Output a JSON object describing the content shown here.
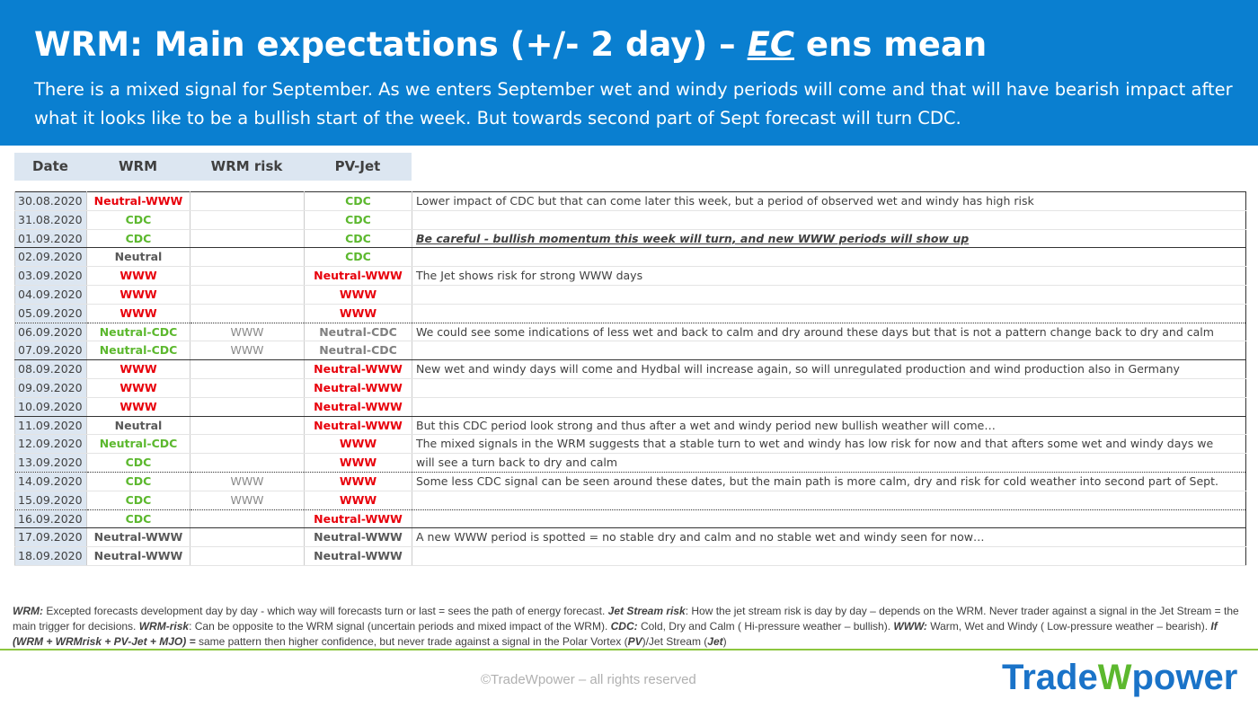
{
  "header": {
    "title": [
      "WRM: Main expectations (+/- 2 day) – ",
      "EC",
      " ens mean"
    ],
    "subtitle": "There is a mixed signal for September. As we enters September wet and windy periods will come and that will have bearish impact after what it looks like to be a bullish start of the week. But towards second part of Sept forecast will turn CDC."
  },
  "table": {
    "headers": [
      "Date",
      "WRM",
      "WRM risk",
      "PV-Jet"
    ],
    "rows": [
      {
        "date": "30.08.2020",
        "wrm": "Neutral-WWW",
        "wrm_color": "#e8000b",
        "risk": null,
        "pv": "CDC",
        "pv_color": "#5cb82e",
        "note": "Lower impact of CDC but that can come later this week, but a period of observed wet and windy has high risk"
      },
      {
        "date": "31.08.2020",
        "wrm": "CDC",
        "wrm_color": "#5cb82e",
        "risk": null,
        "pv": "CDC",
        "pv_color": "#5cb82e",
        "note": null
      },
      {
        "date": "01.09.2020",
        "wrm": "CDC",
        "wrm_color": "#5cb82e",
        "risk": null,
        "pv": "CDC",
        "pv_color": "#5cb82e",
        "note": "Be careful - bullish momentum this week will turn, and new WWW periods will show up",
        "note_emphasis": true
      },
      {
        "date": "02.09.2020",
        "wrm": "Neutral",
        "wrm_color": "#595959",
        "risk": null,
        "pv": "CDC",
        "pv_color": "#5cb82e",
        "note": null
      },
      {
        "date": "03.09.2020",
        "wrm": "WWW",
        "wrm_color": "#e8000b",
        "risk": null,
        "pv": "Neutral-WWW",
        "pv_color": "#e8000b",
        "note": "The Jet shows risk for strong WWW days"
      },
      {
        "date": "04.09.2020",
        "wrm": "WWW",
        "wrm_color": "#e8000b",
        "risk": null,
        "pv": "WWW",
        "pv_color": "#e8000b",
        "note": null
      },
      {
        "date": "05.09.2020",
        "wrm": "WWW",
        "wrm_color": "#e8000b",
        "risk": null,
        "pv": "WWW",
        "pv_color": "#e8000b",
        "note": null
      },
      {
        "date": "06.09.2020",
        "wrm": "Neutral-CDC",
        "wrm_color": "#5cb82e",
        "risk": "WWW",
        "pv": "Neutral-CDC",
        "pv_color": "#808080",
        "note": "We could see some indications of less wet and back to calm and dry around these days but that is not a pattern change back to dry and calm"
      },
      {
        "date": "07.09.2020",
        "wrm": "Neutral-CDC",
        "wrm_color": "#5cb82e",
        "risk": "WWW",
        "pv": "Neutral-CDC",
        "pv_color": "#808080",
        "note": null
      },
      {
        "date": "08.09.2020",
        "wrm": "WWW",
        "wrm_color": "#e8000b",
        "risk": null,
        "pv": "Neutral-WWW",
        "pv_color": "#e8000b",
        "note": "New wet and windy days will come and Hydbal will increase again, so will unregulated production and wind production also in Germany"
      },
      {
        "date": "09.09.2020",
        "wrm": "WWW",
        "wrm_color": "#e8000b",
        "risk": null,
        "pv": "Neutral-WWW",
        "pv_color": "#e8000b",
        "note": null
      },
      {
        "date": "10.09.2020",
        "wrm": "WWW",
        "wrm_color": "#e8000b",
        "risk": null,
        "pv": "Neutral-WWW",
        "pv_color": "#e8000b",
        "note": null
      },
      {
        "date": "11.09.2020",
        "wrm": "Neutral",
        "wrm_color": "#595959",
        "risk": null,
        "pv": "Neutral-WWW",
        "pv_color": "#e8000b",
        "note": "But this CDC period look strong and thus after a wet and windy period new bullish weather will come…"
      },
      {
        "date": "12.09.2020",
        "wrm": "Neutral-CDC",
        "wrm_color": "#5cb82e",
        "risk": null,
        "pv": "WWW",
        "pv_color": "#e8000b",
        "note": "The mixed signals in the WRM suggests that a stable turn to wet and windy has low risk for now and that afters some wet and windy days we"
      },
      {
        "date": "13.09.2020",
        "wrm": "CDC",
        "wrm_color": "#5cb82e",
        "risk": null,
        "pv": "WWW",
        "pv_color": "#e8000b",
        "note": "will see a turn back to dry and calm"
      },
      {
        "date": "14.09.2020",
        "wrm": "CDC",
        "wrm_color": "#5cb82e",
        "risk": "WWW",
        "pv": "WWW",
        "pv_color": "#e8000b",
        "note": "Some less CDC signal can be seen around these dates, but the main path is more calm, dry and risk for cold weather into second part of Sept."
      },
      {
        "date": "15.09.2020",
        "wrm": "CDC",
        "wrm_color": "#5cb82e",
        "risk": "WWW",
        "pv": "WWW",
        "pv_color": "#e8000b",
        "note": null
      },
      {
        "date": "16.09.2020",
        "wrm": "CDC",
        "wrm_color": "#5cb82e",
        "risk": null,
        "pv": "Neutral-WWW",
        "pv_color": "#e8000b",
        "note": null
      },
      {
        "date": "17.09.2020",
        "wrm": "Neutral-WWW",
        "wrm_color": "#595959",
        "risk": null,
        "pv": "Neutral-WWW",
        "pv_color": "#595959",
        "note": "A new WWW period is spotted = no stable dry and calm and no stable wet and windy seen for now…"
      },
      {
        "date": "18.09.2020",
        "wrm": "Neutral-WWW",
        "wrm_color": "#595959",
        "risk": null,
        "pv": "Neutral-WWW",
        "pv_color": "#595959",
        "note": null
      }
    ]
  },
  "footer": {
    "legend": [
      {
        "text": "WRM:",
        "em": true
      },
      {
        "text": " Excepted forecasts development day by day - which way will forecasts turn or last = sees the path of energy forecast.  ",
        "em": false
      },
      {
        "text": "Jet Stream risk",
        "em": true
      },
      {
        "text": ": How the jet stream risk is day by day – depends on the WRM. Never trader against a signal in the Jet Stream = the main trigger for decisions. ",
        "em": false
      },
      {
        "text": "WRM-risk",
        "em": true
      },
      {
        "text": ": Can be opposite to the WRM signal (uncertain periods and mixed impact of the WRM). ",
        "em": false
      },
      {
        "text": "CDC:",
        "em": true
      },
      {
        "text": " Cold, Dry and Calm ( Hi-pressure weather – bullish). ",
        "em": false
      },
      {
        "text": "WWW:",
        "em": true
      },
      {
        "text": " Warm, Wet and Windy ( Low-pressure weather – bearish). ",
        "em": false
      },
      {
        "text": "If (WRM + WRMrisk + PV-Jet + MJO) =",
        "em": true
      },
      {
        "text": " same pattern then higher confidence, but never trade against a signal in the Polar Vortex (",
        "em": false
      },
      {
        "text": "PV",
        "em": true
      },
      {
        "text": ")/Jet Stream (",
        "em": false
      },
      {
        "text": "Jet",
        "em": true
      },
      {
        "text": ")",
        "em": false
      }
    ],
    "copyright": "©TradeWpower – all rights reserved",
    "logo": [
      "Trade",
      "W",
      "power"
    ]
  }
}
